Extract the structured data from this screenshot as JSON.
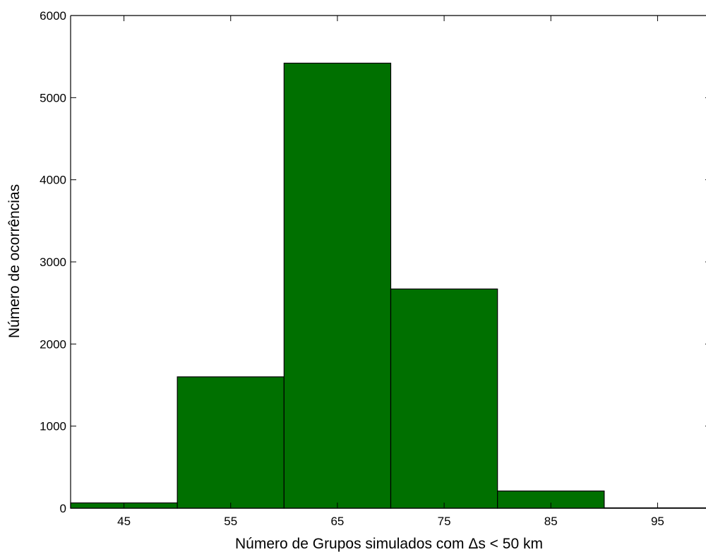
{
  "chart_data": {
    "type": "bar",
    "title": "",
    "xlabel": "Número de Grupos simulados com Δs < 50 km",
    "ylabel": "Número de ocorrências",
    "bar_color": "#007000",
    "bin_edges": [
      40,
      50,
      60,
      70,
      80,
      90,
      100
    ],
    "bin_centers": [
      45,
      55,
      65,
      75,
      85,
      95
    ],
    "values": [
      65,
      1600,
      5420,
      2670,
      210,
      5
    ],
    "xlim": [
      40,
      100
    ],
    "ylim": [
      0,
      6000
    ],
    "xticks": [
      45,
      55,
      65,
      75,
      85,
      95
    ],
    "xtick_labels": [
      "45",
      "55",
      "65",
      "75",
      "85",
      "95"
    ],
    "yticks": [
      0,
      1000,
      2000,
      3000,
      4000,
      5000,
      6000
    ],
    "ytick_labels": [
      "0",
      "1000",
      "2000",
      "3000",
      "4000",
      "5000",
      "6000"
    ],
    "grid": false,
    "legend": "none"
  }
}
